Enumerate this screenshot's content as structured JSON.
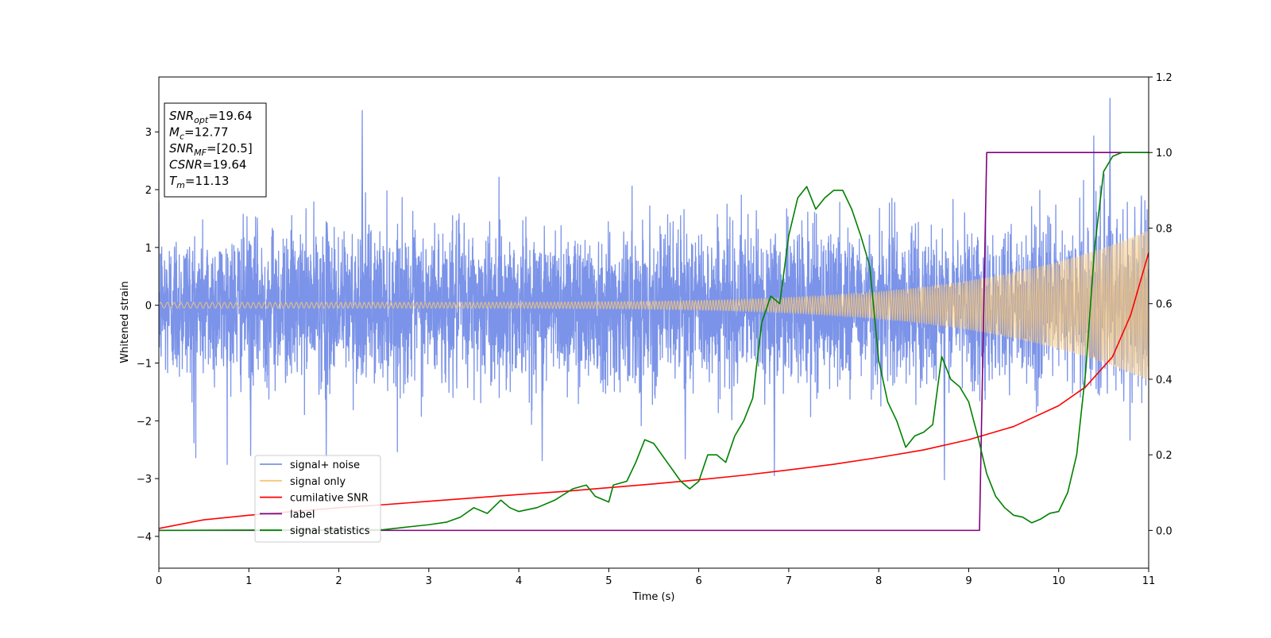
{
  "chart_data": {
    "type": "line",
    "xlabel": "Time (s)",
    "ylabel": "Whitened strain",
    "xlim": [
      0,
      11
    ],
    "ylim_left": [
      -4.55,
      3.95
    ],
    "ylim_right": [
      -0.1,
      1.2
    ],
    "x_ticks": [
      0,
      1,
      2,
      3,
      4,
      5,
      6,
      7,
      8,
      9,
      10,
      11
    ],
    "y_ticks_left": [
      -4,
      -3,
      -2,
      -1,
      0,
      1,
      2,
      3
    ],
    "y_ticks_right": [
      0.0,
      0.2,
      0.4,
      0.6,
      0.8,
      1.0,
      1.2
    ],
    "grid": false,
    "legend_position": "lower-left",
    "info_box": {
      "position": "upper-left",
      "lines": [
        {
          "sym": "SNR",
          "sub": "opt",
          "value": "=19.64"
        },
        {
          "sym": "M",
          "sub": "c",
          "value": "=12.77"
        },
        {
          "sym": "SNR",
          "sub": "MF",
          "value": "=[20.5]"
        },
        {
          "sym": "CSNR",
          "sub": "",
          "value": "=19.64"
        },
        {
          "sym": "T",
          "sub": "m",
          "value": "=11.13"
        }
      ]
    },
    "series": [
      {
        "name": "signal+ noise",
        "color": "#7b93e8",
        "axis": "left",
        "kind": "noise",
        "noise_sigma": 0.65,
        "noise_peak": 3.6,
        "spikes": [
          [
            2.26,
            3.37
          ],
          [
            10.57,
            3.58
          ],
          [
            10.39,
            2.93
          ],
          [
            0.39,
            -2.38
          ],
          [
            1.02,
            -2.6
          ],
          [
            1.86,
            -2.63
          ],
          [
            6.84,
            -2.95
          ],
          [
            8.73,
            -3.02
          ],
          [
            4.26,
            -2.69
          ],
          [
            5.85,
            -2.66
          ]
        ]
      },
      {
        "name": "signal only",
        "color": "#f5c67a",
        "axis": "left",
        "kind": "chirp",
        "amp_start": 0.05,
        "amp_end": 1.3,
        "freq_start": 13,
        "freq_end": 45
      },
      {
        "name": "cumilative SNR",
        "color": "#ff0000",
        "axis": "right",
        "points": [
          [
            0,
            0.005
          ],
          [
            0.5,
            0.028
          ],
          [
            1,
            0.04
          ],
          [
            1.5,
            0.05
          ],
          [
            2,
            0.06
          ],
          [
            2.5,
            0.068
          ],
          [
            3,
            0.077
          ],
          [
            3.5,
            0.086
          ],
          [
            4,
            0.095
          ],
          [
            4.5,
            0.103
          ],
          [
            5,
            0.113
          ],
          [
            5.5,
            0.123
          ],
          [
            6,
            0.134
          ],
          [
            6.5,
            0.146
          ],
          [
            7,
            0.16
          ],
          [
            7.5,
            0.175
          ],
          [
            8,
            0.193
          ],
          [
            8.5,
            0.213
          ],
          [
            9,
            0.24
          ],
          [
            9.5,
            0.275
          ],
          [
            10,
            0.33
          ],
          [
            10.3,
            0.38
          ],
          [
            10.6,
            0.46
          ],
          [
            10.8,
            0.57
          ],
          [
            11,
            0.735
          ]
        ]
      },
      {
        "name": "label",
        "color": "#800080",
        "axis": "right",
        "points": [
          [
            0,
            0.0
          ],
          [
            9.12,
            0.0
          ],
          [
            9.2,
            1.0
          ],
          [
            11,
            1.0
          ]
        ]
      },
      {
        "name": "signal statistics",
        "color": "#008000",
        "axis": "right",
        "points": [
          [
            0,
            0.0
          ],
          [
            2.5,
            0.002
          ],
          [
            2.8,
            0.01
          ],
          [
            3.0,
            0.015
          ],
          [
            3.2,
            0.022
          ],
          [
            3.35,
            0.035
          ],
          [
            3.5,
            0.06
          ],
          [
            3.65,
            0.045
          ],
          [
            3.8,
            0.08
          ],
          [
            3.9,
            0.06
          ],
          [
            4.0,
            0.05
          ],
          [
            4.2,
            0.06
          ],
          [
            4.4,
            0.08
          ],
          [
            4.6,
            0.11
          ],
          [
            4.75,
            0.12
          ],
          [
            4.85,
            0.09
          ],
          [
            5.0,
            0.075
          ],
          [
            5.05,
            0.12
          ],
          [
            5.2,
            0.13
          ],
          [
            5.3,
            0.18
          ],
          [
            5.4,
            0.24
          ],
          [
            5.5,
            0.23
          ],
          [
            5.65,
            0.18
          ],
          [
            5.8,
            0.13
          ],
          [
            5.9,
            0.11
          ],
          [
            6.0,
            0.13
          ],
          [
            6.1,
            0.2
          ],
          [
            6.2,
            0.2
          ],
          [
            6.3,
            0.18
          ],
          [
            6.4,
            0.25
          ],
          [
            6.5,
            0.29
          ],
          [
            6.6,
            0.35
          ],
          [
            6.7,
            0.55
          ],
          [
            6.8,
            0.62
          ],
          [
            6.9,
            0.6
          ],
          [
            7.0,
            0.78
          ],
          [
            7.1,
            0.88
          ],
          [
            7.2,
            0.91
          ],
          [
            7.3,
            0.85
          ],
          [
            7.4,
            0.88
          ],
          [
            7.5,
            0.9
          ],
          [
            7.6,
            0.9
          ],
          [
            7.7,
            0.85
          ],
          [
            7.8,
            0.78
          ],
          [
            7.9,
            0.7
          ],
          [
            8.0,
            0.45
          ],
          [
            8.1,
            0.34
          ],
          [
            8.2,
            0.29
          ],
          [
            8.3,
            0.22
          ],
          [
            8.4,
            0.25
          ],
          [
            8.5,
            0.26
          ],
          [
            8.6,
            0.28
          ],
          [
            8.7,
            0.46
          ],
          [
            8.8,
            0.4
          ],
          [
            8.9,
            0.38
          ],
          [
            9.0,
            0.34
          ],
          [
            9.1,
            0.25
          ],
          [
            9.2,
            0.15
          ],
          [
            9.3,
            0.09
          ],
          [
            9.4,
            0.06
          ],
          [
            9.5,
            0.04
          ],
          [
            9.6,
            0.035
          ],
          [
            9.7,
            0.02
          ],
          [
            9.8,
            0.03
          ],
          [
            9.9,
            0.045
          ],
          [
            10.0,
            0.05
          ],
          [
            10.1,
            0.1
          ],
          [
            10.2,
            0.2
          ],
          [
            10.3,
            0.42
          ],
          [
            10.4,
            0.75
          ],
          [
            10.5,
            0.95
          ],
          [
            10.6,
            0.99
          ],
          [
            10.7,
            1.0
          ],
          [
            11.0,
            1.0
          ]
        ]
      }
    ]
  }
}
